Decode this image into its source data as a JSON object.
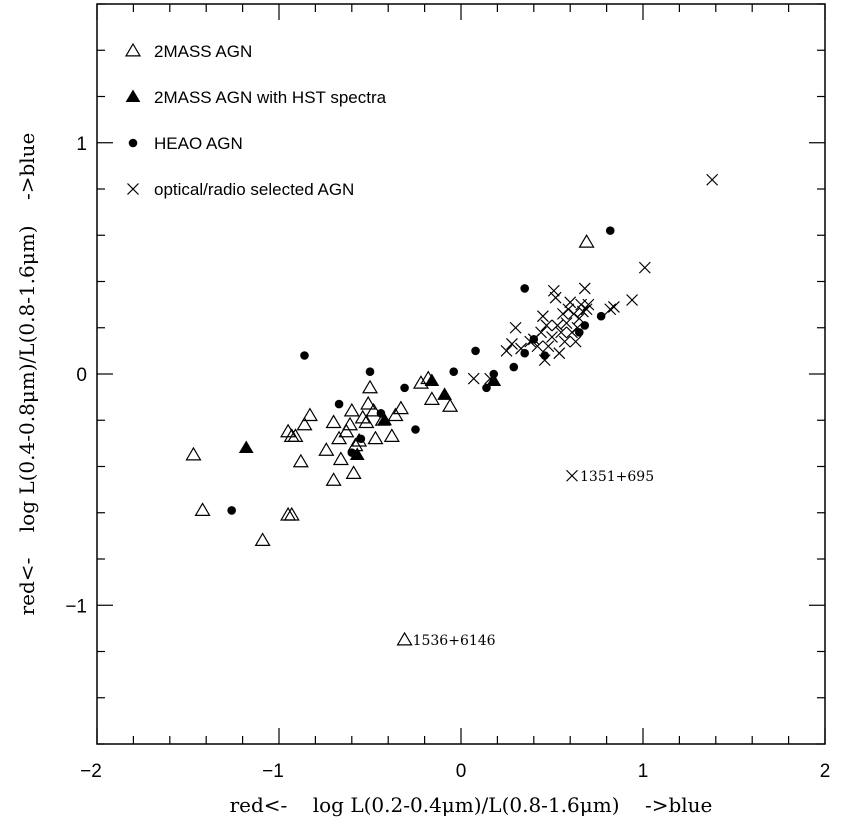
{
  "chart_data": {
    "type": "scatter",
    "xlabel": "red<-    log L(0.2-0.4μm)/L(0.8-1.6μm)    ->blue",
    "ylabel": "red<-    log L(0.4-0.8μm)/L(0.8-1.6μm)    ->blue",
    "xlim": [
      -2,
      2
    ],
    "ylim": [
      -1.6,
      1.6
    ],
    "x_ticks": [
      -2,
      -1,
      0,
      1,
      2
    ],
    "x_tick_labels": [
      "−2",
      "−1",
      "0",
      "1",
      "2"
    ],
    "y_ticks": [
      -1,
      0,
      1
    ],
    "y_tick_labels": [
      "−1",
      "0",
      "1"
    ],
    "grid": false,
    "legend_position": "top-left",
    "series": [
      {
        "name": "2MASS AGN",
        "marker": "open-triangle",
        "points": [
          [
            -1.47,
            -0.35
          ],
          [
            -1.42,
            -0.59
          ],
          [
            -1.09,
            -0.72
          ],
          [
            -0.95,
            -0.25
          ],
          [
            -0.93,
            -0.27
          ],
          [
            -0.91,
            -0.27
          ],
          [
            -0.95,
            -0.61
          ],
          [
            -0.93,
            -0.61
          ],
          [
            -0.88,
            -0.38
          ],
          [
            -0.86,
            -0.22
          ],
          [
            -0.83,
            -0.18
          ],
          [
            -0.74,
            -0.33
          ],
          [
            -0.7,
            -0.46
          ],
          [
            -0.7,
            -0.21
          ],
          [
            -0.67,
            -0.28
          ],
          [
            -0.66,
            -0.37
          ],
          [
            -0.63,
            -0.25
          ],
          [
            -0.61,
            -0.22
          ],
          [
            -0.6,
            -0.16
          ],
          [
            -0.59,
            -0.43
          ],
          [
            -0.58,
            -0.31
          ],
          [
            -0.56,
            -0.29
          ],
          [
            -0.54,
            -0.19
          ],
          [
            -0.52,
            -0.21
          ],
          [
            -0.51,
            -0.13
          ],
          [
            -0.5,
            -0.06
          ],
          [
            -0.48,
            -0.16
          ],
          [
            -0.47,
            -0.28
          ],
          [
            -0.43,
            -0.2
          ],
          [
            -0.38,
            -0.27
          ],
          [
            -0.36,
            -0.18
          ],
          [
            -0.33,
            -0.15
          ],
          [
            -0.22,
            -0.04
          ],
          [
            -0.18,
            -0.02
          ],
          [
            -0.16,
            -0.11
          ],
          [
            -0.06,
            -0.14
          ],
          [
            0.69,
            0.57
          ],
          [
            -0.31,
            -1.15
          ]
        ]
      },
      {
        "name": "2MASS AGN with HST spectra",
        "marker": "filled-triangle",
        "points": [
          [
            -1.18,
            -0.32
          ],
          [
            -0.57,
            -0.35
          ],
          [
            -0.42,
            -0.2
          ],
          [
            -0.16,
            -0.03
          ],
          [
            -0.09,
            -0.09
          ],
          [
            0.18,
            -0.03
          ]
        ]
      },
      {
        "name": "HEAO AGN",
        "marker": "filled-circle",
        "points": [
          [
            -1.26,
            -0.59
          ],
          [
            -0.86,
            0.08
          ],
          [
            -0.67,
            -0.13
          ],
          [
            -0.6,
            -0.34
          ],
          [
            -0.55,
            -0.28
          ],
          [
            -0.5,
            0.01
          ],
          [
            -0.44,
            -0.17
          ],
          [
            -0.31,
            -0.06
          ],
          [
            -0.25,
            -0.24
          ],
          [
            -0.04,
            0.01
          ],
          [
            0.08,
            0.1
          ],
          [
            0.14,
            -0.06
          ],
          [
            0.18,
            0.0
          ],
          [
            0.29,
            0.03
          ],
          [
            0.35,
            0.37
          ],
          [
            0.35,
            0.09
          ],
          [
            0.4,
            0.15
          ],
          [
            0.46,
            0.08
          ],
          [
            0.65,
            0.18
          ],
          [
            0.68,
            0.21
          ],
          [
            0.77,
            0.25
          ],
          [
            0.82,
            0.62
          ]
        ]
      },
      {
        "name": "optical/radio selected AGN",
        "marker": "cross",
        "points": [
          [
            1.38,
            0.84
          ],
          [
            1.01,
            0.46
          ],
          [
            0.94,
            0.32
          ],
          [
            0.84,
            0.29
          ],
          [
            0.82,
            0.28
          ],
          [
            0.07,
            -0.02
          ],
          [
            0.16,
            -0.02
          ],
          [
            0.25,
            0.1
          ],
          [
            0.28,
            0.13
          ],
          [
            0.3,
            0.2
          ],
          [
            0.33,
            0.11
          ],
          [
            0.38,
            0.14
          ],
          [
            0.4,
            0.15
          ],
          [
            0.42,
            0.12
          ],
          [
            0.44,
            0.18
          ],
          [
            0.45,
            0.25
          ],
          [
            0.46,
            0.06
          ],
          [
            0.47,
            0.21
          ],
          [
            0.48,
            0.12
          ],
          [
            0.5,
            0.16
          ],
          [
            0.51,
            0.36
          ],
          [
            0.52,
            0.33
          ],
          [
            0.53,
            0.21
          ],
          [
            0.54,
            0.09
          ],
          [
            0.55,
            0.18
          ],
          [
            0.56,
            0.26
          ],
          [
            0.57,
            0.14
          ],
          [
            0.58,
            0.22
          ],
          [
            0.59,
            0.28
          ],
          [
            0.6,
            0.31
          ],
          [
            0.61,
            0.18
          ],
          [
            0.62,
            0.26
          ],
          [
            0.63,
            0.14
          ],
          [
            0.64,
            0.2
          ],
          [
            0.65,
            0.24
          ],
          [
            0.66,
            0.3
          ],
          [
            0.67,
            0.27
          ],
          [
            0.68,
            0.37
          ],
          [
            0.69,
            0.28
          ],
          [
            0.7,
            0.3
          ],
          [
            0.61,
            -0.44
          ]
        ]
      }
    ],
    "annotations": [
      {
        "text": "1351+695",
        "x": 0.61,
        "y": -0.44
      },
      {
        "text": "1536+6146",
        "x": -0.31,
        "y": -1.15
      }
    ]
  }
}
